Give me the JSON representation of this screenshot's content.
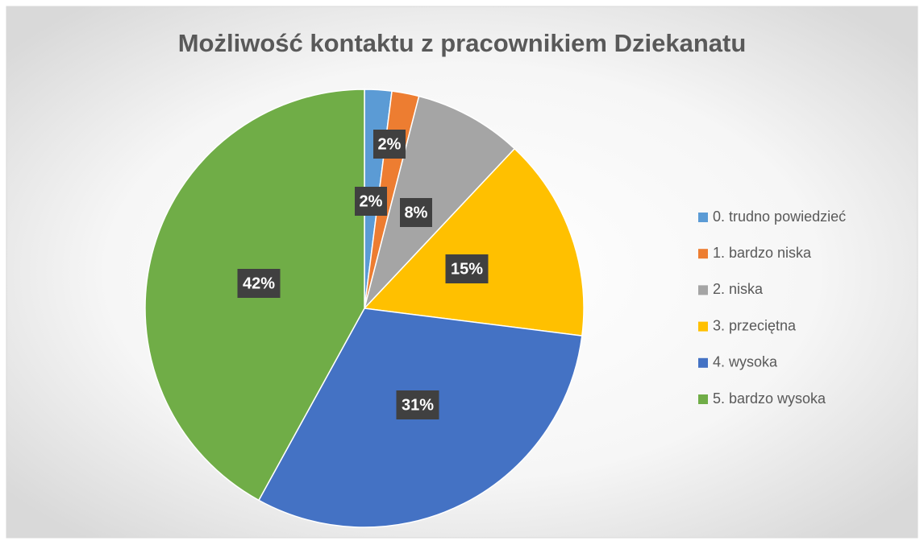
{
  "chart_data": {
    "type": "pie",
    "title": "Możliwość kontaktu z pracownikiem Dziekanatu",
    "categories": [
      "0. trudno powiedzieć",
      "1. bardzo niska",
      "2. niska",
      "3. przeciętna",
      "4. wysoka",
      "5. bardzo wysoka"
    ],
    "values": [
      2,
      2,
      8,
      15,
      31,
      42
    ],
    "value_labels": [
      "2%",
      "2%",
      "8%",
      "15%",
      "31%",
      "42%"
    ],
    "colors": [
      "#5b9bd5",
      "#ed7d31",
      "#a5a5a5",
      "#ffc000",
      "#4472c4",
      "#70ad47"
    ],
    "legend": "right"
  }
}
